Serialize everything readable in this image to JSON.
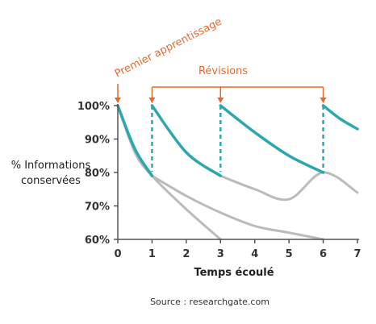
{
  "chart_data": {
    "type": "line",
    "title": "",
    "xlabel": "Temps écoulé",
    "ylabel": [
      "% Informations",
      "conservées"
    ],
    "xlim": [
      0,
      7
    ],
    "ylim": [
      60,
      100
    ],
    "x_ticks": [
      "0",
      "1",
      "2",
      "3",
      "4",
      "5",
      "6",
      "7"
    ],
    "y_ticks": [
      "60%",
      "70%",
      "80%",
      "90%",
      "100%"
    ],
    "grid": false,
    "series": [
      {
        "name": "",
        "color": "#bbbbbb",
        "points": [
          [
            0,
            100
          ],
          [
            0.5,
            86
          ],
          [
            1,
            79
          ],
          [
            2,
            69
          ],
          [
            3,
            60
          ]
        ]
      },
      {
        "name": "",
        "color": "#bbbbbb",
        "points": [
          [
            1,
            79
          ],
          [
            2,
            73
          ],
          [
            3,
            68
          ],
          [
            4,
            64
          ],
          [
            5,
            62
          ],
          [
            6,
            60
          ]
        ]
      },
      {
        "name": "",
        "color": "#bbbbbb",
        "points": [
          [
            3,
            79
          ],
          [
            4,
            75
          ],
          [
            5,
            72
          ],
          [
            6,
            80
          ],
          [
            7,
            74
          ]
        ]
      },
      {
        "name": "",
        "color": "#2aa8b0",
        "points": [
          [
            0,
            100
          ],
          [
            0.5,
            87
          ],
          [
            1,
            79
          ]
        ]
      },
      {
        "name": "",
        "color": "#2aa8b0",
        "points": [
          [
            1,
            100
          ],
          [
            2,
            86
          ],
          [
            3,
            79
          ]
        ]
      },
      {
        "name": "",
        "color": "#2aa8b0",
        "points": [
          [
            3,
            100
          ],
          [
            4,
            92
          ],
          [
            5,
            85
          ],
          [
            6,
            80
          ]
        ]
      },
      {
        "name": "",
        "color": "#2aa8b0",
        "points": [
          [
            6,
            100
          ],
          [
            6.5,
            96
          ],
          [
            7,
            93
          ]
        ]
      }
    ],
    "review_times": [
      1,
      3,
      6
    ],
    "annotations": {
      "first_learning": "Premier apprentissage",
      "revisions": "Révisions"
    },
    "source": "Source : researchgate.com"
  }
}
